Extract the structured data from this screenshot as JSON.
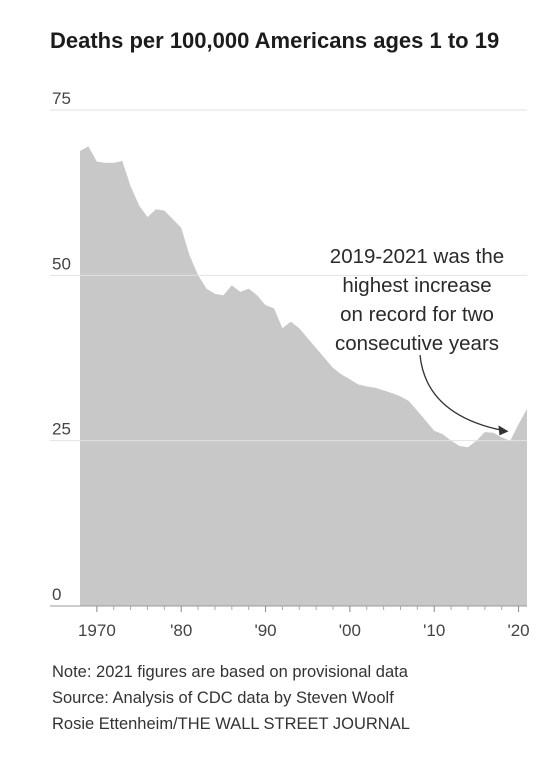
{
  "chart_data": {
    "type": "area",
    "title": "Deaths per 100,000 Americans ages 1 to 19",
    "xlabel": "",
    "ylabel": "",
    "xlim": [
      1968,
      2021
    ],
    "ylim": [
      0,
      75
    ],
    "y_ticks": [
      0,
      25,
      50,
      75
    ],
    "x_ticks": [
      {
        "value": 1970,
        "label": "1970"
      },
      {
        "value": 1980,
        "label": "'80"
      },
      {
        "value": 1990,
        "label": "'90"
      },
      {
        "value": 2000,
        "label": "'00"
      },
      {
        "value": 2010,
        "label": "'10"
      },
      {
        "value": 2020,
        "label": "'20"
      }
    ],
    "grid": true,
    "area_color": "#c8c8c8",
    "grid_color": "#e2e2e2",
    "series": [
      {
        "x": [
          1968,
          1969,
          1970,
          1971,
          1972,
          1973,
          1974,
          1975,
          1976,
          1977,
          1978,
          1979,
          1980,
          1981,
          1982,
          1983,
          1984,
          1985,
          1986,
          1987,
          1988,
          1989,
          1990,
          1991,
          1992,
          1993,
          1994,
          1995,
          1996,
          1997,
          1998,
          1999,
          2000,
          2001,
          2002,
          2003,
          2004,
          2005,
          2006,
          2007,
          2008,
          2009,
          2010,
          2011,
          2012,
          2013,
          2014,
          2015,
          2016,
          2017,
          2018,
          2019,
          2020,
          2021
        ],
        "values": [
          68.8,
          69.5,
          67.2,
          67.0,
          67.0,
          67.3,
          63.5,
          60.6,
          58.8,
          60.0,
          59.8,
          58.5,
          57.2,
          53.0,
          50.0,
          48.0,
          47.2,
          47.0,
          48.5,
          47.5,
          48.0,
          47.0,
          45.5,
          45.0,
          42.0,
          43.0,
          42.0,
          40.5,
          39.0,
          37.5,
          36.0,
          35.0,
          34.3,
          33.5,
          33.2,
          33.0,
          32.6,
          32.2,
          31.7,
          31.0,
          29.5,
          28.0,
          26.5,
          26.0,
          25.0,
          24.2,
          24.0,
          25.0,
          26.3,
          26.2,
          25.5,
          25.0,
          27.5,
          29.8
        ]
      }
    ],
    "annotation": {
      "lines": [
        "2019-2021 was the",
        "highest increase",
        "on record for two",
        "consecutive years"
      ],
      "points_to_year": 2018.8,
      "points_to_value": 26.4
    }
  },
  "footer": {
    "note": "Note: 2021 figures are based on provisional data",
    "source": "Source: Analysis of CDC data by Steven Woolf",
    "credit": "Rosie Ettenheim/THE WALL STREET JOURNAL"
  }
}
